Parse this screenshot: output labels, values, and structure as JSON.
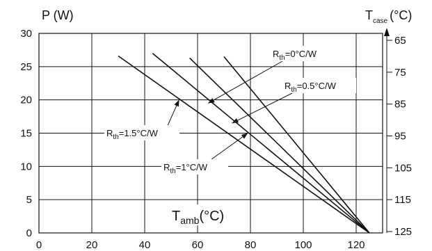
{
  "chart_data": {
    "type": "line",
    "ylabel": "P (W)",
    "xlabel": {
      "main": "T",
      "sub": "amb",
      "unit": "(°C)"
    },
    "y2label": {
      "main": "T",
      "sub": "case",
      "unit": "(°C)"
    },
    "xlim": [
      0,
      130
    ],
    "ylim": [
      0,
      30
    ],
    "x_ticks": [
      0,
      20,
      40,
      60,
      80,
      100,
      120
    ],
    "x_tick_labels": [
      "0",
      "20",
      "40",
      "60",
      "80",
      "100",
      "120"
    ],
    "y_ticks": [
      0,
      5,
      10,
      15,
      20,
      25,
      30
    ],
    "y_tick_labels": [
      "0",
      "5",
      "10",
      "15",
      "20",
      "25",
      "30"
    ],
    "y2_ticks": [
      65,
      75,
      85,
      95,
      105,
      115,
      125
    ],
    "y2_tick_labels": [
      "65",
      "75",
      "85",
      "95",
      "105",
      "115",
      "125"
    ],
    "grid": true,
    "series": [
      {
        "x": [
          70,
          125
        ],
        "y": [
          26.5,
          0
        ],
        "label": {
          "main": "R",
          "sub": "th",
          "rest": "=0°C/W"
        },
        "arrow_x": 64,
        "arrow_y": 19.5
      },
      {
        "x": [
          57,
          125
        ],
        "y": [
          26.3,
          0
        ],
        "label": {
          "main": "R",
          "sub": "th",
          "rest": "=0.5°C/W"
        },
        "arrow_x": 73,
        "arrow_y": 16.5
      },
      {
        "x": [
          43,
          125
        ],
        "y": [
          27,
          0
        ],
        "label": {
          "main": "R",
          "sub": "th",
          "rest": "=1°C/W"
        },
        "arrow_x": 79,
        "arrow_y": 15
      },
      {
        "x": [
          30,
          125
        ],
        "y": [
          26.6,
          0
        ],
        "label": {
          "main": "R",
          "sub": "th",
          "rest": "=1.5°C/W"
        },
        "arrow_x": 53,
        "arrow_y": 20
      }
    ]
  }
}
